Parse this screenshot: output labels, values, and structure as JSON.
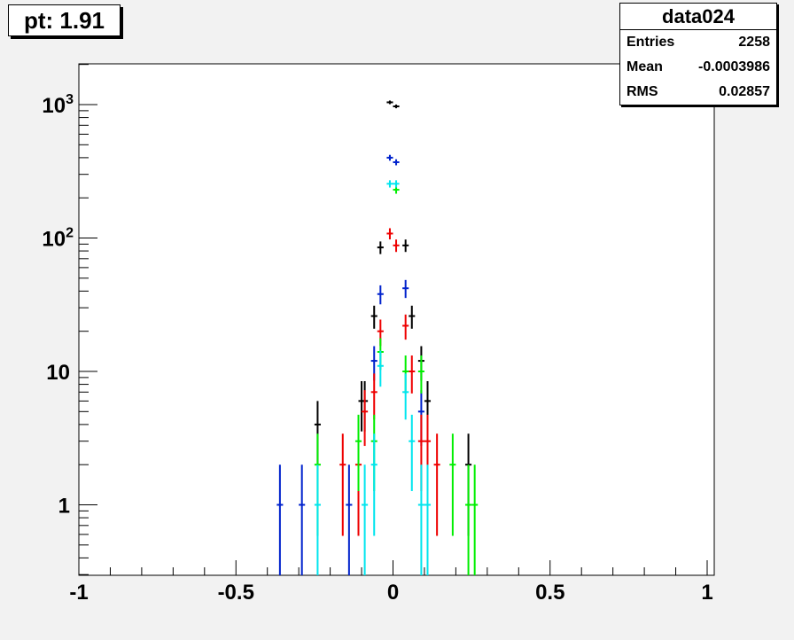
{
  "title": "pt: 1.91",
  "stats": {
    "name": "data024",
    "rows": [
      {
        "label": "Entries",
        "value": "2258"
      },
      {
        "label": "Mean",
        "value": "-0.0003986"
      },
      {
        "label": "RMS",
        "value": "0.02857"
      }
    ]
  },
  "chart_data": {
    "type": "scatter",
    "title": "pt: 1.91",
    "xlabel": "",
    "ylabel": "",
    "xlim": [
      -1,
      1
    ],
    "ylim": [
      0.3,
      2000
    ],
    "yscale": "log",
    "grid": false,
    "legend": "none",
    "x_ticks": [
      {
        "value": -1,
        "label": "-1"
      },
      {
        "value": -0.5,
        "label": "-0.5"
      },
      {
        "value": 0,
        "label": "0"
      },
      {
        "value": 0.5,
        "label": "0.5"
      },
      {
        "value": 1,
        "label": "1"
      }
    ],
    "y_ticks": [
      {
        "value": 1,
        "label": "1",
        "exp": ""
      },
      {
        "value": 10,
        "label": "10",
        "exp": ""
      },
      {
        "value": 100,
        "label": "10",
        "exp": "2"
      },
      {
        "value": 1000,
        "label": "10",
        "exp": "3"
      }
    ],
    "series": [
      {
        "color": "#000000",
        "points": [
          [
            -0.24,
            4
          ],
          [
            -0.1,
            6
          ],
          [
            -0.09,
            6
          ],
          [
            -0.06,
            26
          ],
          [
            -0.04,
            85
          ],
          [
            -0.01,
            1040
          ],
          [
            0.01,
            970
          ],
          [
            0.04,
            88
          ],
          [
            0.06,
            26
          ],
          [
            0.09,
            12
          ],
          [
            0.11,
            6
          ],
          [
            0.24,
            2
          ]
        ]
      },
      {
        "color": "#0022cc",
        "points": [
          [
            -0.36,
            1
          ],
          [
            -0.29,
            1
          ],
          [
            -0.14,
            1
          ],
          [
            -0.06,
            12
          ],
          [
            -0.04,
            38
          ],
          [
            -0.01,
            400
          ],
          [
            0.01,
            370
          ],
          [
            0.04,
            42
          ],
          [
            0.09,
            5
          ]
        ]
      },
      {
        "color": "#ee0000",
        "points": [
          [
            -0.16,
            2
          ],
          [
            -0.11,
            2
          ],
          [
            -0.09,
            5
          ],
          [
            -0.06,
            7
          ],
          [
            -0.04,
            20
          ],
          [
            -0.01,
            108
          ],
          [
            0.01,
            88
          ],
          [
            0.04,
            22
          ],
          [
            0.06,
            10
          ],
          [
            0.09,
            3
          ],
          [
            0.11,
            3
          ],
          [
            0.14,
            2
          ]
        ]
      },
      {
        "color": "#00ee00",
        "points": [
          [
            -0.24,
            2
          ],
          [
            -0.11,
            3
          ],
          [
            -0.06,
            3
          ],
          [
            -0.04,
            14
          ],
          [
            0.01,
            230
          ],
          [
            0.04,
            10
          ],
          [
            0.09,
            10
          ],
          [
            0.19,
            2
          ],
          [
            0.24,
            1
          ],
          [
            0.26,
            1
          ]
        ]
      },
      {
        "color": "#00e5ee",
        "points": [
          [
            -0.24,
            1
          ],
          [
            -0.09,
            1
          ],
          [
            -0.06,
            2
          ],
          [
            -0.04,
            11
          ],
          [
            -0.01,
            255
          ],
          [
            0.01,
            255
          ],
          [
            0.04,
            7
          ],
          [
            0.06,
            3
          ],
          [
            0.09,
            1
          ],
          [
            0.11,
            1
          ]
        ]
      }
    ]
  }
}
